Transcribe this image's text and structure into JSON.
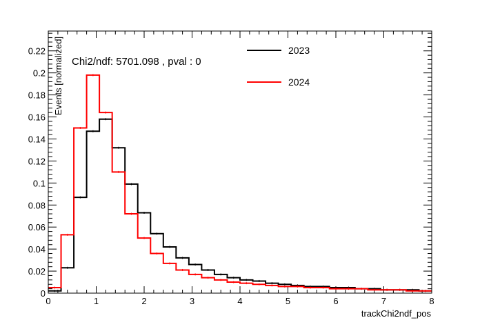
{
  "chart_data": {
    "type": "histogram",
    "annotation": "Chi2/ndf: 5701.098 , pval : 0",
    "xlabel": "trackChi2ndf_pos",
    "ylabel": "Events [normalized]",
    "xlim": [
      0,
      8
    ],
    "ylim": [
      0,
      0.238
    ],
    "grid": false,
    "legend_position": "top-right",
    "bin_width": 0.2667,
    "x_ticks": [
      0,
      1,
      2,
      3,
      4,
      5,
      6,
      7,
      8
    ],
    "y_ticks": [
      0,
      0.02,
      0.04,
      0.06,
      0.08,
      0.1,
      0.12,
      0.14,
      0.16,
      0.18,
      0.2,
      0.22
    ],
    "x_tick_labels": [
      "0",
      "1",
      "2",
      "3",
      "4",
      "5",
      "6",
      "7",
      "8"
    ],
    "y_tick_labels": [
      "0",
      "0.02",
      "0.04",
      "0.06",
      "0.08",
      "0.1",
      "0.12",
      "0.14",
      "0.16",
      "0.18",
      "0.2",
      "0.22"
    ],
    "series": [
      {
        "name": "2023",
        "color": "#000000",
        "values": [
          0.002,
          0.023,
          0.087,
          0.147,
          0.158,
          0.132,
          0.099,
          0.073,
          0.054,
          0.042,
          0.032,
          0.026,
          0.021,
          0.017,
          0.014,
          0.012,
          0.011,
          0.009,
          0.008,
          0.007,
          0.006,
          0.006,
          0.005,
          0.005,
          0.004,
          0.004,
          0.003,
          0.003,
          0.003,
          0.002
        ]
      },
      {
        "name": "2024",
        "color": "#ff0000",
        "values": [
          0.005,
          0.053,
          0.15,
          0.198,
          0.164,
          0.11,
          0.072,
          0.05,
          0.036,
          0.027,
          0.021,
          0.017,
          0.014,
          0.012,
          0.01,
          0.009,
          0.008,
          0.007,
          0.006,
          0.006,
          0.005,
          0.005,
          0.004,
          0.004,
          0.004,
          0.003,
          0.003,
          0.003,
          0.002,
          0.002
        ]
      }
    ]
  }
}
